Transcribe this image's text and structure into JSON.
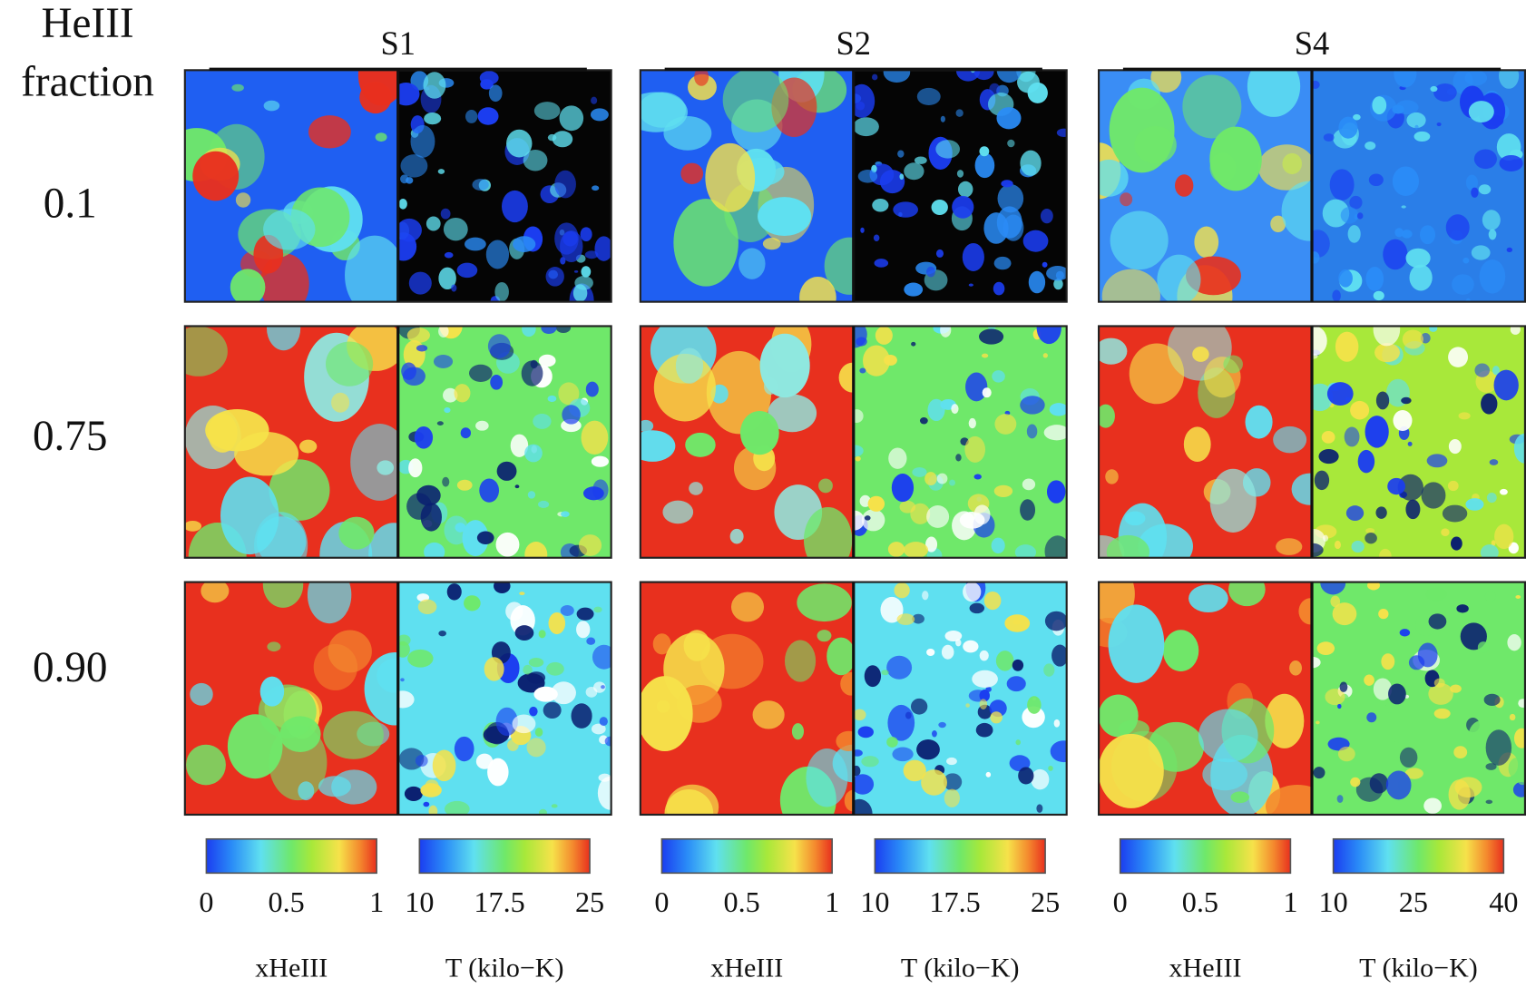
{
  "row_header": {
    "title_lines": [
      "HeIII",
      "fraction"
    ]
  },
  "rows": [
    "0.1",
    "0.75",
    "0.90"
  ],
  "columns": [
    {
      "title": "S1",
      "colorbars": [
        {
          "ticks": [
            "0",
            "0.5",
            "1"
          ],
          "label": "xHeIII"
        },
        {
          "ticks": [
            "10",
            "17.5",
            "25"
          ],
          "label": "T (kilo−K)"
        }
      ]
    },
    {
      "title": "S2",
      "colorbars": [
        {
          "ticks": [
            "0",
            "0.5",
            "1"
          ],
          "label": "xHeIII"
        },
        {
          "ticks": [
            "10",
            "17.5",
            "25"
          ],
          "label": "T (kilo−K)"
        }
      ]
    },
    {
      "title": "S4",
      "colorbars": [
        {
          "ticks": [
            "0",
            "0.5",
            "1"
          ],
          "label": "xHeIII"
        },
        {
          "ticks": [
            "10",
            "25",
            "40"
          ],
          "label": "T (kilo−K)"
        }
      ]
    }
  ]
}
